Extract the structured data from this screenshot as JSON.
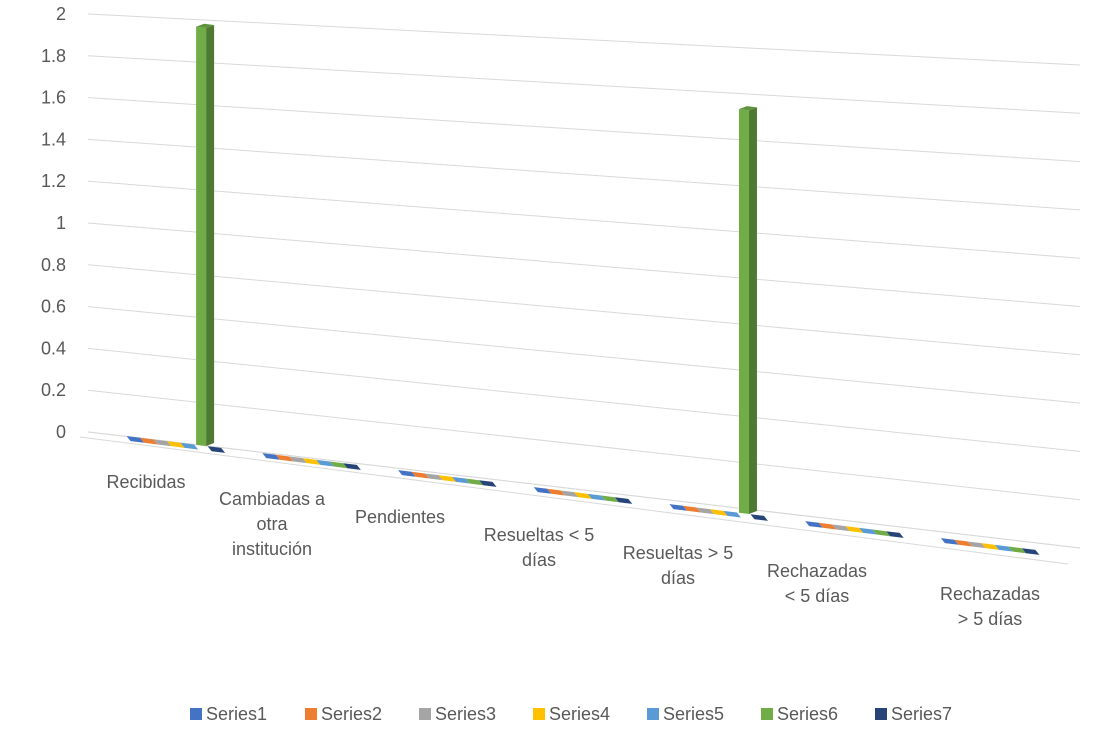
{
  "chart_data": {
    "type": "bar",
    "subtype": "3d-clustered-column",
    "title": "",
    "xlabel": "",
    "ylabel": "",
    "ylim": [
      0,
      2
    ],
    "y_ticks": [
      "0",
      "0.2",
      "0.4",
      "0.6",
      "0.8",
      "1",
      "1.2",
      "1.4",
      "1.6",
      "1.8",
      "2"
    ],
    "categories": [
      [
        "Recibidas"
      ],
      [
        "Cambiadas a",
        "otra",
        "institución"
      ],
      [
        "Pendientes"
      ],
      [
        "Resueltas < 5",
        "días"
      ],
      [
        "Resueltas > 5",
        "días"
      ],
      [
        "Rechazadas",
        "< 5 días"
      ],
      [
        "Rechazadas",
        "> 5 días"
      ]
    ],
    "series": [
      {
        "name": "Series1",
        "color": "#4472C4",
        "values": [
          0,
          0,
          0,
          0,
          0,
          0,
          0
        ]
      },
      {
        "name": "Series2",
        "color": "#ED7D31",
        "values": [
          0,
          0,
          0,
          0,
          0,
          0,
          0
        ]
      },
      {
        "name": "Series3",
        "color": "#A5A5A5",
        "values": [
          0,
          0,
          0,
          0,
          0,
          0,
          0
        ]
      },
      {
        "name": "Series4",
        "color": "#FFC000",
        "values": [
          0,
          0,
          0,
          0,
          0,
          0,
          0
        ]
      },
      {
        "name": "Series5",
        "color": "#5B9BD5",
        "values": [
          0,
          0,
          0,
          0,
          0,
          0,
          0
        ]
      },
      {
        "name": "Series6",
        "color": "#70AD47",
        "values": [
          2,
          0,
          0,
          0,
          2,
          0,
          0
        ]
      },
      {
        "name": "Series7",
        "color": "#264478",
        "values": [
          0,
          0,
          0,
          0,
          0,
          0,
          0
        ]
      }
    ],
    "grid": true,
    "legend": "bottom"
  }
}
